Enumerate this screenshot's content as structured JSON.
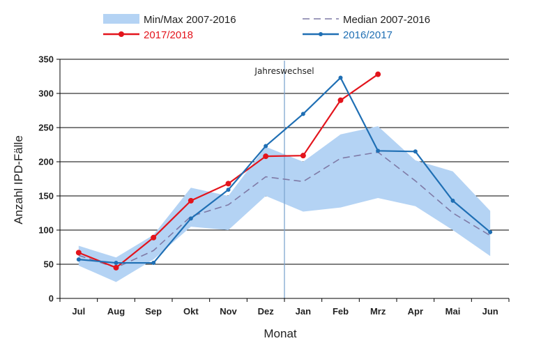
{
  "chart_data": {
    "type": "line",
    "xlabel": "Monat",
    "ylabel": "Anzahl IPD-Fälle",
    "ylim": [
      0,
      350
    ],
    "yticks": [
      0,
      50,
      100,
      150,
      200,
      250,
      300,
      350
    ],
    "grid": true,
    "legend_position": "top",
    "categories": [
      "Jul",
      "Aug",
      "Sep",
      "Okt",
      "Nov",
      "Dez",
      "Jan",
      "Feb",
      "Mrz",
      "Apr",
      "Mai",
      "Jun"
    ],
    "band": {
      "name": "Min/Max 2007-2016",
      "color": "#b4d3f4",
      "min": [
        48,
        24,
        57,
        105,
        100,
        150,
        127,
        133,
        147,
        135,
        100,
        62
      ],
      "max": [
        77,
        60,
        93,
        162,
        150,
        222,
        200,
        240,
        252,
        202,
        186,
        128
      ]
    },
    "series": [
      {
        "name": "Median 2007-2016",
        "color": "#7f7aa6",
        "style": "dashed",
        "marker": "none",
        "values": [
          63,
          45,
          70,
          120,
          137,
          178,
          171,
          205,
          214,
          172,
          125,
          92
        ]
      },
      {
        "name": "2017/2018",
        "color": "#e3141c",
        "style": "solid",
        "marker": "circle",
        "values": [
          67,
          45,
          89,
          143,
          168,
          208,
          209,
          290,
          328,
          null,
          null,
          null
        ]
      },
      {
        "name": "2016/2017",
        "color": "#1f6fb4",
        "style": "solid",
        "marker": "dot",
        "values": [
          57,
          52,
          52,
          117,
          159,
          223,
          270,
          323,
          216,
          215,
          143,
          97
        ]
      }
    ],
    "annotations": [
      {
        "text": "Jahreswechsel",
        "between": [
          "Dez",
          "Jan"
        ],
        "line_color": "#7fa6d0"
      }
    ]
  }
}
